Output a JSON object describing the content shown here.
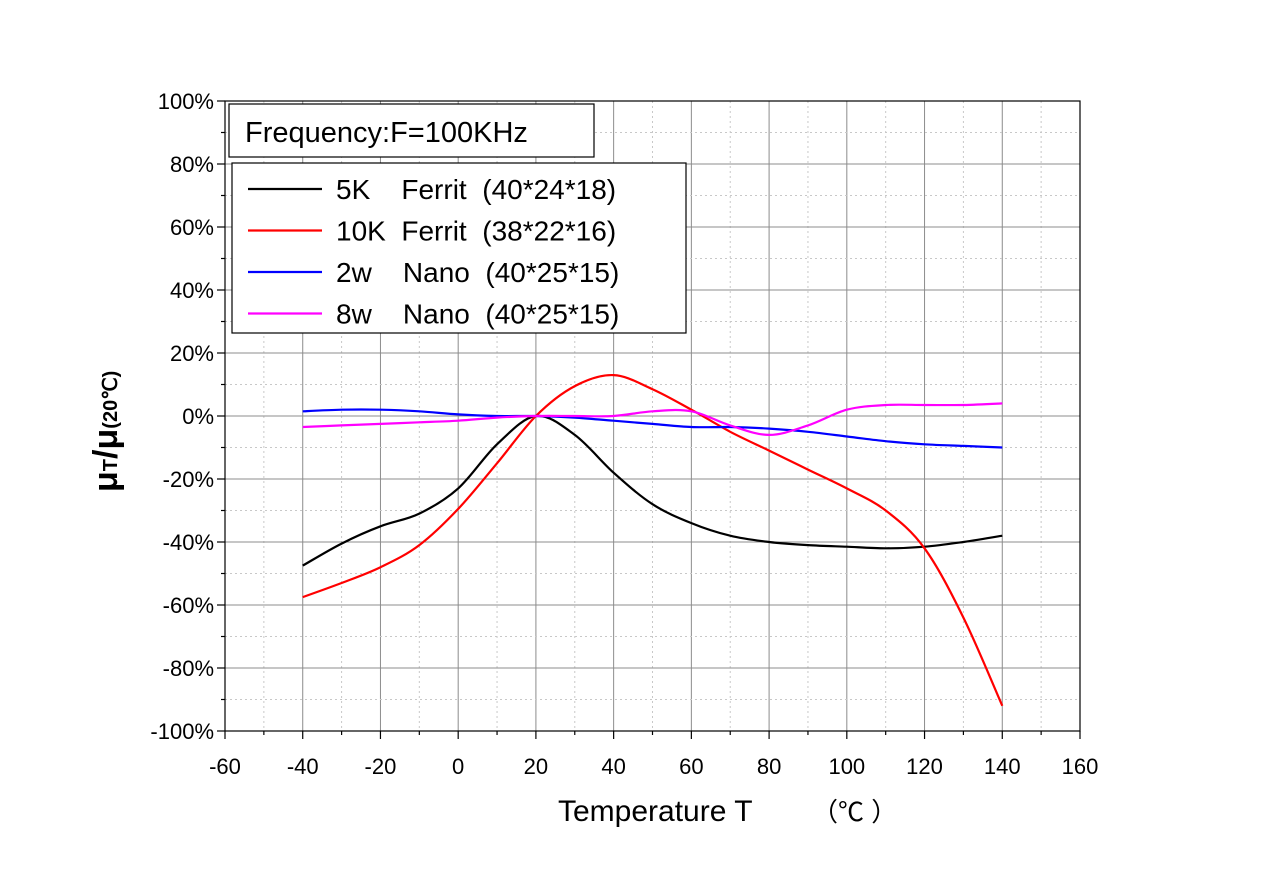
{
  "chart_data": {
    "type": "line",
    "annotation": "Frequency:F=100KHz",
    "xlabel": {
      "main": "Temperature   T",
      "unit": "（℃ ）"
    },
    "ylabel": {
      "mu_t": "μ",
      "t_sub": "T",
      "slash": "/",
      "mu_ref": "μ",
      "ref_sub": "(20℃)"
    },
    "xlim": [
      -60,
      160
    ],
    "ylim": [
      -100,
      100
    ],
    "x_ticks": [
      -60,
      -40,
      -20,
      0,
      20,
      40,
      60,
      80,
      100,
      120,
      140,
      160
    ],
    "x_tick_labels": [
      "-60",
      "-40",
      "-20",
      "0",
      "20",
      "40",
      "60",
      "80",
      "100",
      "120",
      "140",
      "160"
    ],
    "y_ticks": [
      -100,
      -80,
      -60,
      -40,
      -20,
      0,
      20,
      40,
      60,
      80,
      100
    ],
    "y_tick_labels": [
      "-100%",
      "-80%",
      "-60%",
      "-40%",
      "-20%",
      "0%",
      "20%",
      "40%",
      "60%",
      "80%",
      "100%"
    ],
    "grid": true,
    "legend_position": "top-left",
    "series": [
      {
        "name": "5K    Ferrit  (40*24*18)",
        "color": "#000000",
        "x": [
          -40,
          -30,
          -20,
          -10,
          0,
          10,
          20,
          30,
          40,
          50,
          60,
          70,
          80,
          90,
          100,
          110,
          120,
          130,
          140
        ],
        "y": [
          -47.5,
          -40.5,
          -35,
          -31,
          -23,
          -9,
          0,
          -6,
          -18,
          -28,
          -34,
          -38,
          -40,
          -41,
          -41.5,
          -42,
          -41.5,
          -40,
          -38
        ]
      },
      {
        "name": "10K  Ferrit  (38*22*16)",
        "color": "#ff0000",
        "x": [
          -40,
          -30,
          -20,
          -10,
          0,
          10,
          20,
          30,
          40,
          50,
          60,
          70,
          80,
          90,
          100,
          110,
          120,
          130,
          140
        ],
        "y": [
          -57.5,
          -53,
          -48,
          -41,
          -29.5,
          -15,
          0,
          9.5,
          13,
          8.5,
          2,
          -5,
          -11,
          -17,
          -23,
          -30,
          -42,
          -64,
          -92
        ]
      },
      {
        "name": "2w    Nano  (40*25*15)",
        "color": "#0000ff",
        "x": [
          -40,
          -30,
          -20,
          -10,
          0,
          10,
          20,
          30,
          40,
          50,
          60,
          70,
          80,
          90,
          100,
          110,
          120,
          130,
          140
        ],
        "y": [
          1.5,
          2,
          2,
          1.5,
          0.5,
          0,
          0,
          -0.5,
          -1.5,
          -2.5,
          -3.5,
          -3.5,
          -4,
          -5,
          -6.5,
          -8,
          -9,
          -9.5,
          -10
        ]
      },
      {
        "name": "8w    Nano  (40*25*15)",
        "color": "#ff00ff",
        "x": [
          -40,
          -30,
          -20,
          -10,
          0,
          10,
          20,
          30,
          40,
          50,
          60,
          70,
          80,
          90,
          100,
          110,
          120,
          130,
          140
        ],
        "y": [
          -3.5,
          -3,
          -2.5,
          -2,
          -1.5,
          -0.5,
          0,
          0,
          0,
          1.5,
          1.5,
          -3,
          -6,
          -3,
          2,
          3.5,
          3.5,
          3.5,
          4
        ]
      }
    ]
  }
}
